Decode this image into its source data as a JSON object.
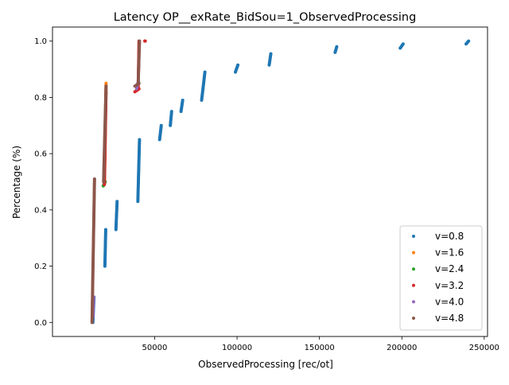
{
  "chart_data": {
    "type": "scatter",
    "title": "Latency OP__exRate_BidSou=1_ObservedProcessing",
    "xlabel": "ObservedProcessing [rec/ot]",
    "ylabel": "Percentage (%)",
    "xlim": [
      -12000,
      252000
    ],
    "ylim": [
      -0.05,
      1.05
    ],
    "xticks": [
      {
        "v": 50000,
        "label": "50000"
      },
      {
        "v": 100000,
        "label": "100000"
      },
      {
        "v": 150000,
        "label": "150000"
      },
      {
        "v": 200000,
        "label": "200000"
      },
      {
        "v": 250000,
        "label": "250000"
      }
    ],
    "yticks": [
      {
        "v": 0.0,
        "label": "0.0"
      },
      {
        "v": 0.2,
        "label": "0.2"
      },
      {
        "v": 0.4,
        "label": "0.4"
      },
      {
        "v": 0.6,
        "label": "0.6"
      },
      {
        "v": 0.8,
        "label": "0.8"
      },
      {
        "v": 1.0,
        "label": "1.0"
      }
    ],
    "legend_position": "lower-right",
    "series": [
      {
        "name": "v=0.8",
        "color": "#1f77b4",
        "segments": [
          [
            12500,
            0.0,
            13200,
            0.09
          ],
          [
            19800,
            0.2,
            20300,
            0.33
          ],
          [
            26500,
            0.33,
            27200,
            0.43
          ],
          [
            39800,
            0.43,
            40800,
            0.65
          ],
          [
            53000,
            0.65,
            54000,
            0.7
          ],
          [
            59500,
            0.7,
            60300,
            0.75
          ],
          [
            66000,
            0.75,
            67000,
            0.79
          ],
          [
            78500,
            0.79,
            80500,
            0.89
          ],
          [
            99000,
            0.89,
            100500,
            0.915
          ],
          [
            119500,
            0.915,
            120500,
            0.955
          ],
          [
            159500,
            0.96,
            160500,
            0.98
          ],
          [
            199000,
            0.975,
            200800,
            0.99
          ],
          [
            239000,
            0.99,
            240500,
            1.0
          ]
        ]
      },
      {
        "name": "v=1.6",
        "color": "#ff7f0e",
        "segments": [
          [
            19500,
            0.5,
            20500,
            0.85
          ]
        ]
      },
      {
        "name": "v=2.4",
        "color": "#2ca02c",
        "segments": [
          [
            18800,
            0.485,
            20000,
            0.5
          ]
        ]
      },
      {
        "name": "v=3.2",
        "color": "#d62728",
        "segments": [
          [
            19500,
            0.49,
            20500,
            0.82
          ],
          [
            38000,
            0.82,
            40500,
            0.83
          ],
          [
            40000,
            0.83,
            40500,
            1.0
          ],
          [
            44000,
            1.0,
            44300,
            1.0
          ]
        ]
      },
      {
        "name": "v=4.0",
        "color": "#9467bd",
        "segments": [
          [
            12500,
            0.02,
            13000,
            0.09
          ],
          [
            39000,
            0.83,
            40200,
            0.86
          ]
        ]
      },
      {
        "name": "v=4.8",
        "color": "#8c564b",
        "segments": [
          [
            12000,
            0.0,
            13500,
            0.51
          ],
          [
            19000,
            0.5,
            20500,
            0.84
          ],
          [
            38000,
            0.84,
            40500,
            0.85
          ],
          [
            40000,
            0.85,
            40800,
            1.0
          ]
        ]
      }
    ]
  }
}
